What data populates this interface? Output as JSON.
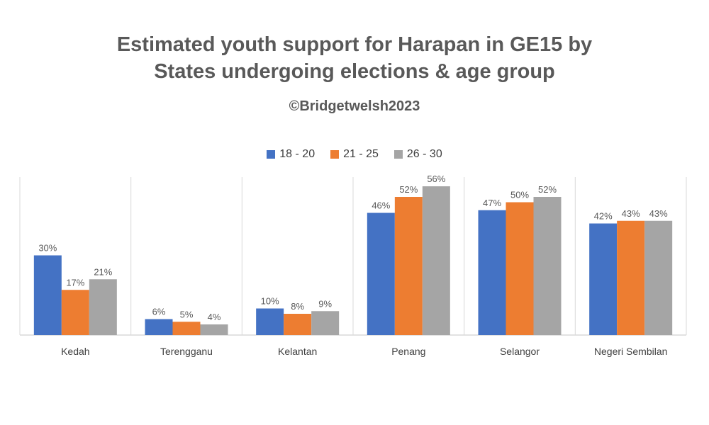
{
  "chart_data": {
    "type": "bar",
    "title_line1": "Estimated youth support for Harapan in GE15 by",
    "title_line2": "States undergoing elections & age group",
    "subtitle": "©Bridgetwelsh2023",
    "categories": [
      "Kedah",
      "Terengganu",
      "Kelantan",
      "Penang",
      "Selangor",
      "Negeri Sembilan"
    ],
    "series": [
      {
        "name": "18 - 20",
        "color": "#4472C4",
        "values": [
          30,
          6,
          10,
          46,
          47,
          42
        ]
      },
      {
        "name": "21 - 25",
        "color": "#ED7D31",
        "values": [
          17,
          5,
          8,
          52,
          50,
          43
        ]
      },
      {
        "name": "26 - 30",
        "color": "#A5A5A5",
        "values": [
          21,
          4,
          9,
          56,
          52,
          43
        ]
      }
    ],
    "value_suffix": "%",
    "ylim": [
      0,
      60
    ],
    "legend_position": "top-center",
    "grid": false
  }
}
